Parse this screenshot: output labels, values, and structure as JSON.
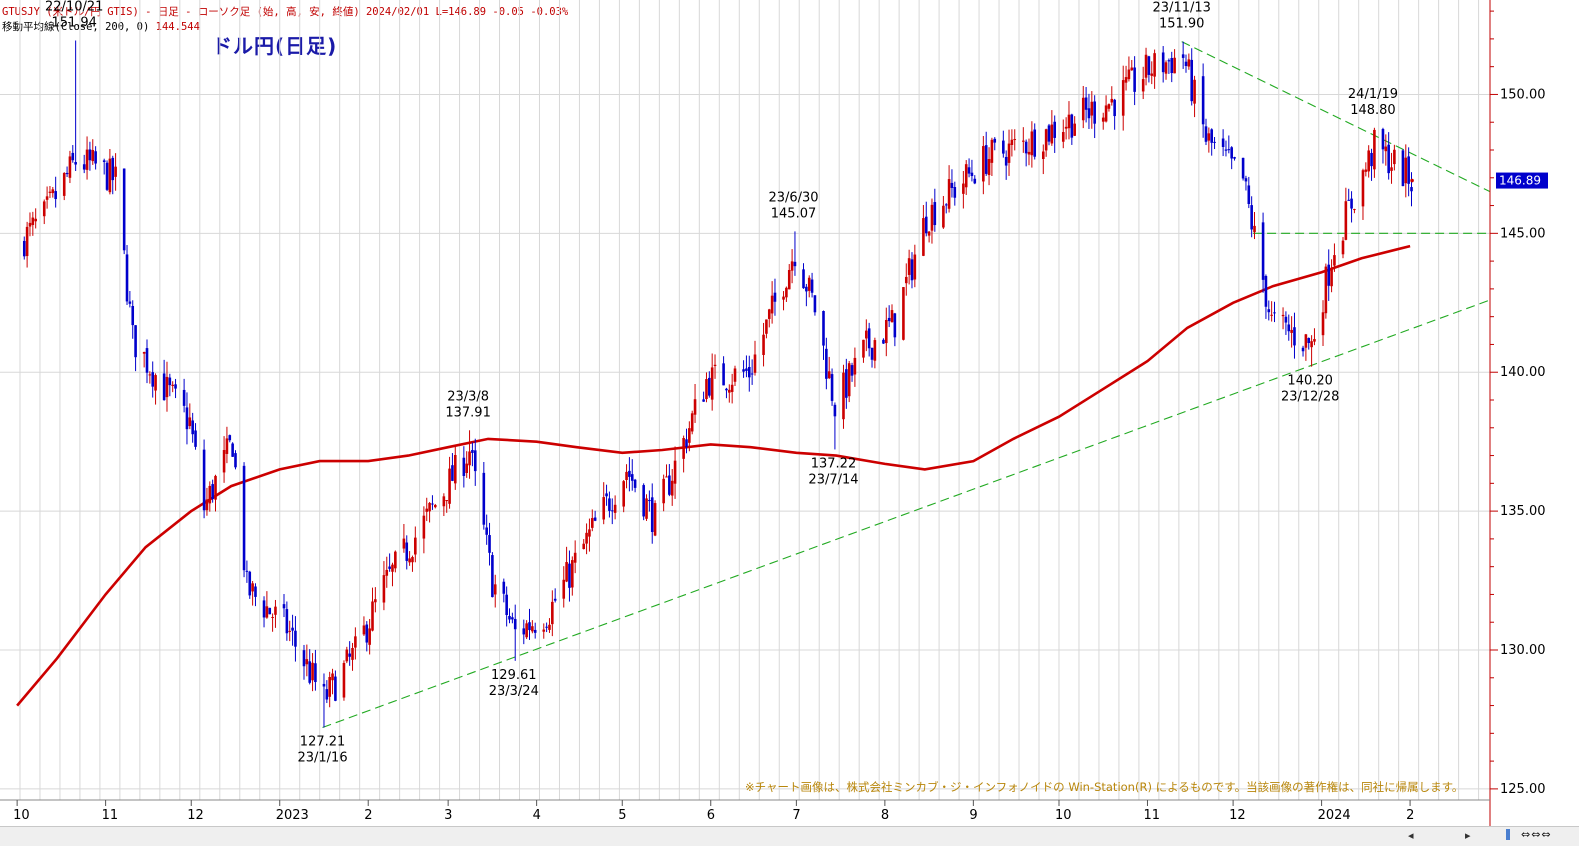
{
  "header": {
    "line1": "GTUSJY (米ドル/円 GTIS) - 日足 - ローソク足 (始, 高, 安, 終値)  2024/02/01 L=146.89 -0.05 -0.03%",
    "ma_label": "移動平均線(Close, 200, 0)",
    "ma_value": "144.544"
  },
  "title_overlay": "ドル円(日足)",
  "current_price_badge": "146.89",
  "copyright": "※チャート画像は、株式会社ミンカブ・ジ・インフォノイドの Win-Station(R) によるものです。当該画像の著作権は、同社に帰属します。",
  "scrollbar": {
    "left_arrow": "◂",
    "right_arrow": "▸",
    "zoom_icons": "⇔⇔⇔"
  },
  "colors": {
    "up": "#cc0000",
    "down": "#0000cc",
    "ma": "#cc0000",
    "trendline": "#22aa22",
    "grid": "#d8d8d8",
    "badge": "#0000cc"
  },
  "chart_data": {
    "type": "candlestick",
    "x_tick_labels": [
      "10",
      "11",
      "12",
      "2023",
      "2",
      "3",
      "4",
      "5",
      "6",
      "7",
      "8",
      "9",
      "10",
      "11",
      "12",
      "2024",
      "2"
    ],
    "y_ticks": [
      125,
      130,
      135,
      140,
      145,
      150
    ],
    "y_tick_labels": [
      "125.00",
      "130.00",
      "135.00",
      "140.00",
      "145.00",
      "150.00"
    ],
    "ylim": [
      124.6,
      153.4
    ],
    "date_range": [
      "2022-10-01",
      "2024-02-01"
    ],
    "close_path": [
      [
        "2022-10-01",
        144.6
      ],
      [
        "2022-10-10",
        145.6
      ],
      [
        "2022-10-21",
        147.6
      ],
      [
        "2022-10-28",
        147.4
      ],
      [
        "2022-11-04",
        146.9
      ],
      [
        "2022-11-10",
        141.2
      ],
      [
        "2022-11-18",
        139.9
      ],
      [
        "2022-11-30",
        138.2
      ],
      [
        "2022-12-05",
        135.1
      ],
      [
        "2022-12-15",
        137.5
      ],
      [
        "2022-12-20",
        132.2
      ],
      [
        "2023-01-03",
        130.8
      ],
      [
        "2023-01-16",
        128.2
      ],
      [
        "2023-01-27",
        129.9
      ],
      [
        "2023-02-06",
        132.3
      ],
      [
        "2023-02-22",
        134.9
      ],
      [
        "2023-03-08",
        137.2
      ],
      [
        "2023-03-16",
        132.5
      ],
      [
        "2023-03-24",
        130.6
      ],
      [
        "2023-04-05",
        131.4
      ],
      [
        "2023-04-20",
        134.3
      ],
      [
        "2023-05-02",
        136.5
      ],
      [
        "2023-05-12",
        134.7
      ],
      [
        "2023-05-30",
        139.7
      ],
      [
        "2023-06-14",
        140.0
      ],
      [
        "2023-06-30",
        144.4
      ],
      [
        "2023-07-07",
        142.3
      ],
      [
        "2023-07-14",
        138.8
      ],
      [
        "2023-07-25",
        140.9
      ],
      [
        "2023-08-04",
        141.8
      ],
      [
        "2023-08-15",
        145.6
      ],
      [
        "2023-09-05",
        147.7
      ],
      [
        "2023-09-20",
        148.3
      ],
      [
        "2023-10-03",
        149.0
      ],
      [
        "2023-10-20",
        149.8
      ],
      [
        "2023-11-01",
        150.9
      ],
      [
        "2023-11-13",
        151.4
      ],
      [
        "2023-11-21",
        148.4
      ],
      [
        "2023-12-04",
        146.9
      ],
      [
        "2023-12-14",
        141.8
      ],
      [
        "2023-12-28",
        141.0
      ],
      [
        "2024-01-05",
        144.6
      ],
      [
        "2024-01-19",
        148.1
      ],
      [
        "2024-01-25",
        147.6
      ],
      [
        "2024-02-01",
        146.9
      ]
    ],
    "moving_average_200": [
      [
        "2022-10-01",
        128.0
      ],
      [
        "2022-10-15",
        129.7
      ],
      [
        "2022-11-01",
        132.0
      ],
      [
        "2022-11-15",
        133.7
      ],
      [
        "2022-12-01",
        135.0
      ],
      [
        "2022-12-15",
        135.9
      ],
      [
        "2023-01-01",
        136.5
      ],
      [
        "2023-01-15",
        136.8
      ],
      [
        "2023-02-01",
        136.8
      ],
      [
        "2023-02-15",
        137.0
      ],
      [
        "2023-03-01",
        137.3
      ],
      [
        "2023-03-15",
        137.6
      ],
      [
        "2023-04-01",
        137.5
      ],
      [
        "2023-04-15",
        137.3
      ],
      [
        "2023-05-01",
        137.1
      ],
      [
        "2023-05-15",
        137.2
      ],
      [
        "2023-06-01",
        137.4
      ],
      [
        "2023-06-15",
        137.3
      ],
      [
        "2023-07-01",
        137.1
      ],
      [
        "2023-07-15",
        137.0
      ],
      [
        "2023-08-01",
        136.7
      ],
      [
        "2023-08-15",
        136.5
      ],
      [
        "2023-09-01",
        136.8
      ],
      [
        "2023-09-15",
        137.6
      ],
      [
        "2023-10-01",
        138.4
      ],
      [
        "2023-10-15",
        139.3
      ],
      [
        "2023-11-01",
        140.4
      ],
      [
        "2023-11-15",
        141.6
      ],
      [
        "2023-12-01",
        142.5
      ],
      [
        "2023-12-15",
        143.1
      ],
      [
        "2024-01-01",
        143.6
      ],
      [
        "2024-01-15",
        144.1
      ],
      [
        "2024-02-01",
        144.54
      ]
    ],
    "annotations": [
      {
        "date": "2022-10-21",
        "price": 151.94,
        "label_top": "22/10/21",
        "label_bottom": "151.94",
        "position": "above"
      },
      {
        "date": "2023-01-16",
        "price": 127.21,
        "label_top": "127.21",
        "label_bottom": "23/1/16",
        "position": "below"
      },
      {
        "date": "2023-03-08",
        "price": 137.91,
        "label_top": "23/3/8",
        "label_bottom": "137.91",
        "position": "above"
      },
      {
        "date": "2023-03-24",
        "price": 129.61,
        "label_top": "129.61",
        "label_bottom": "23/3/24",
        "position": "below"
      },
      {
        "date": "2023-06-30",
        "price": 145.07,
        "label_top": "23/6/30",
        "label_bottom": "145.07",
        "position": "above"
      },
      {
        "date": "2023-07-14",
        "price": 137.22,
        "label_top": "137.22",
        "label_bottom": "23/7/14",
        "position": "below"
      },
      {
        "date": "2023-11-13",
        "price": 151.9,
        "label_top": "23/11/13",
        "label_bottom": "151.90",
        "position": "above"
      },
      {
        "date": "2023-12-28",
        "price": 140.2,
        "label_top": "140.20",
        "label_bottom": "23/12/28",
        "position": "below"
      },
      {
        "date": "2024-01-19",
        "price": 148.8,
        "label_top": "24/1/19",
        "label_bottom": "148.80",
        "position": "above"
      }
    ],
    "trendlines": [
      {
        "from": [
          "2023-01-16",
          127.21
        ],
        "to": [
          "2024-02-29",
          142.6
        ],
        "style": "dashed"
      },
      {
        "from": [
          "2023-11-13",
          151.9
        ],
        "to": [
          "2024-02-29",
          146.5
        ],
        "style": "dashed"
      },
      {
        "from": [
          "2023-12-08",
          145.0
        ],
        "to": [
          "2024-02-29",
          145.0
        ],
        "style": "dashed"
      }
    ],
    "grid": true
  }
}
